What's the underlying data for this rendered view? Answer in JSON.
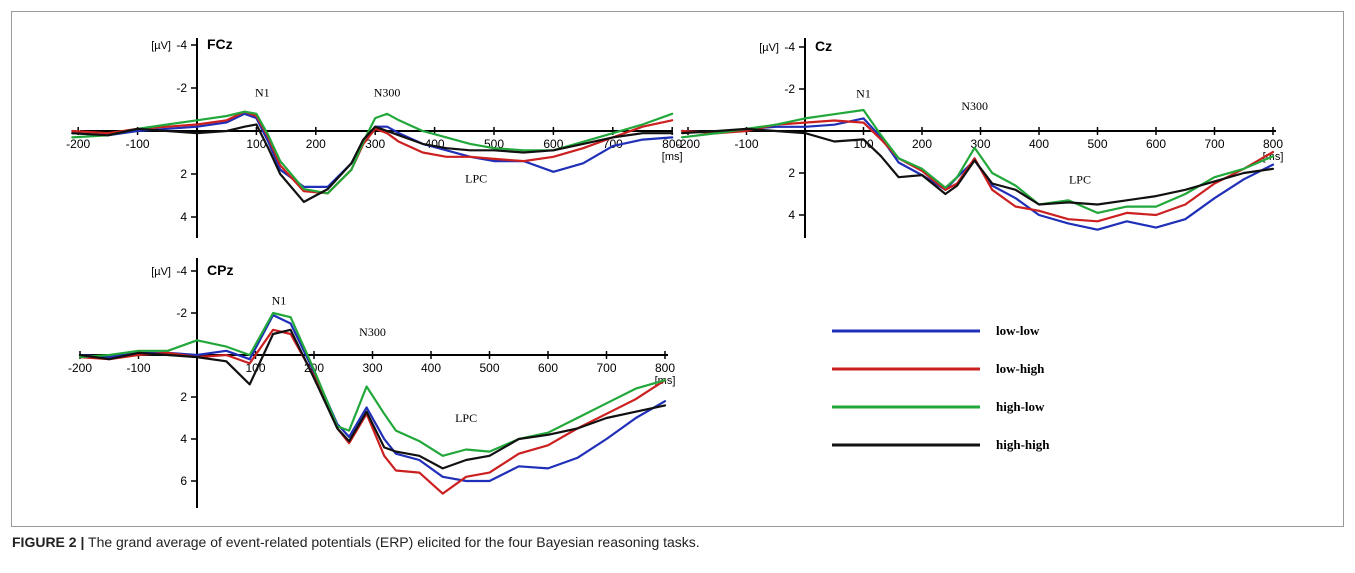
{
  "caption": {
    "label": "FIGURE 2 |",
    "text": " The grand average of event-related potentials (ERP) elicited for the four Bayesian reasoning tasks."
  },
  "chart_data": [
    {
      "type": "line",
      "title": "FCz",
      "y_unit": "[µV]",
      "x_unit": "[ms]",
      "xlim": [
        -210,
        800
      ],
      "ylim": [
        -4.5,
        5
      ],
      "y_inverted": true,
      "xticks": [
        -200,
        -100,
        100,
        200,
        300,
        400,
        500,
        600,
        700,
        800
      ],
      "yticks": [
        -4,
        -2,
        2,
        4
      ],
      "annotations": [
        {
          "text": "N1",
          "x": 110,
          "y": -1.6
        },
        {
          "text": "N300",
          "x": 320,
          "y": -1.6
        },
        {
          "text": "LPC",
          "x": 470,
          "y": 2.4
        }
      ],
      "series": [
        {
          "name": "low-low",
          "color": "#1f2fb8",
          "x": [
            -210,
            -150,
            -100,
            -50,
            0,
            50,
            80,
            100,
            120,
            140,
            180,
            220,
            260,
            280,
            300,
            320,
            340,
            380,
            420,
            460,
            500,
            550,
            600,
            650,
            700,
            750,
            800
          ],
          "y": [
            0.1,
            0.2,
            0.0,
            -0.1,
            -0.2,
            -0.4,
            -0.8,
            -0.6,
            0.5,
            1.8,
            2.6,
            2.6,
            1.5,
            0.5,
            -0.2,
            -0.2,
            0.1,
            0.6,
            0.9,
            1.2,
            1.4,
            1.4,
            1.9,
            1.5,
            0.7,
            0.4,
            0.3
          ]
        },
        {
          "name": "low-high",
          "color": "#cc1f1f",
          "x": [
            -210,
            -150,
            -100,
            -50,
            0,
            50,
            80,
            100,
            120,
            140,
            180,
            220,
            260,
            280,
            300,
            320,
            340,
            380,
            420,
            460,
            500,
            550,
            600,
            650,
            700,
            750,
            800
          ],
          "y": [
            0.0,
            0.1,
            -0.1,
            -0.2,
            -0.3,
            -0.5,
            -0.9,
            -0.7,
            0.3,
            1.6,
            2.8,
            2.9,
            1.8,
            0.6,
            -0.1,
            0.1,
            0.5,
            1.0,
            1.2,
            1.2,
            1.3,
            1.4,
            1.2,
            0.8,
            0.3,
            -0.2,
            -0.5
          ]
        },
        {
          "name": "high-low",
          "color": "#22a83a",
          "x": [
            -210,
            -150,
            -100,
            -50,
            0,
            50,
            80,
            100,
            120,
            140,
            180,
            220,
            260,
            280,
            300,
            320,
            340,
            380,
            420,
            460,
            500,
            550,
            600,
            650,
            700,
            750,
            800
          ],
          "y": [
            0.3,
            0.2,
            -0.1,
            -0.3,
            -0.5,
            -0.7,
            -0.9,
            -0.8,
            0.2,
            1.4,
            2.7,
            2.9,
            1.8,
            0.5,
            -0.6,
            -0.8,
            -0.5,
            0.0,
            0.3,
            0.6,
            0.8,
            0.9,
            0.9,
            0.5,
            0.1,
            -0.3,
            -0.8
          ]
        },
        {
          "name": "high-high",
          "color": "#111111",
          "x": [
            -210,
            -150,
            -100,
            -50,
            0,
            50,
            80,
            100,
            120,
            140,
            180,
            220,
            260,
            280,
            300,
            320,
            340,
            380,
            420,
            460,
            500,
            550,
            600,
            650,
            700,
            750,
            800
          ],
          "y": [
            0.1,
            0.2,
            -0.1,
            0.0,
            0.1,
            0.0,
            -0.2,
            -0.3,
            0.8,
            2.0,
            3.3,
            2.7,
            1.5,
            0.4,
            -0.2,
            0.0,
            0.2,
            0.6,
            0.8,
            0.9,
            0.9,
            1.0,
            0.9,
            0.6,
            0.3,
            0.1,
            0.1
          ]
        }
      ]
    },
    {
      "type": "line",
      "title": "Cz",
      "y_unit": "[µV]",
      "x_unit": "[ms]",
      "xlim": [
        -210,
        800
      ],
      "ylim": [
        -4.5,
        5
      ],
      "y_inverted": true,
      "xticks": [
        -200,
        -100,
        100,
        200,
        300,
        400,
        500,
        600,
        700,
        800
      ],
      "yticks": [
        -4,
        -2,
        2,
        4
      ],
      "annotations": [
        {
          "text": "N1",
          "x": 100,
          "y": -1.6
        },
        {
          "text": "N300",
          "x": 290,
          "y": -1.0
        },
        {
          "text": "LPC",
          "x": 470,
          "y": 2.5
        }
      ],
      "series": [
        {
          "name": "low-low",
          "color": "#1f2fb8",
          "x": [
            -210,
            -150,
            -100,
            -50,
            0,
            50,
            100,
            130,
            160,
            200,
            240,
            260,
            290,
            320,
            360,
            400,
            450,
            500,
            550,
            600,
            650,
            700,
            750,
            800
          ],
          "y": [
            0.0,
            0.1,
            -0.1,
            -0.2,
            -0.2,
            -0.3,
            -0.6,
            0.3,
            1.5,
            2.1,
            2.8,
            2.2,
            1.4,
            2.6,
            3.2,
            4.0,
            4.4,
            4.7,
            4.3,
            4.6,
            4.2,
            3.2,
            2.3,
            1.6
          ]
        },
        {
          "name": "low-high",
          "color": "#cc1f1f",
          "x": [
            -210,
            -150,
            -100,
            -50,
            0,
            50,
            100,
            130,
            160,
            200,
            240,
            260,
            290,
            320,
            360,
            400,
            450,
            500,
            550,
            600,
            650,
            700,
            750,
            800
          ],
          "y": [
            0.0,
            0.1,
            0.0,
            -0.3,
            -0.4,
            -0.5,
            -0.4,
            0.4,
            1.3,
            1.9,
            2.8,
            2.5,
            1.3,
            2.8,
            3.6,
            3.8,
            4.2,
            4.3,
            3.9,
            4.0,
            3.5,
            2.5,
            1.8,
            1.0
          ]
        },
        {
          "name": "high-low",
          "color": "#22a83a",
          "x": [
            -210,
            -150,
            -100,
            -50,
            0,
            50,
            100,
            130,
            160,
            200,
            240,
            260,
            290,
            320,
            360,
            400,
            450,
            500,
            550,
            600,
            650,
            700,
            750,
            800
          ],
          "y": [
            0.3,
            0.1,
            -0.1,
            -0.3,
            -0.6,
            -0.8,
            -1.0,
            0.2,
            1.3,
            1.8,
            2.7,
            2.2,
            0.8,
            2.0,
            2.6,
            3.5,
            3.3,
            3.9,
            3.6,
            3.6,
            3.0,
            2.2,
            1.8,
            1.2
          ]
        },
        {
          "name": "high-high",
          "color": "#111111",
          "x": [
            -210,
            -150,
            -100,
            -50,
            0,
            50,
            100,
            130,
            160,
            200,
            240,
            260,
            290,
            320,
            360,
            400,
            450,
            500,
            550,
            600,
            650,
            700,
            750,
            800
          ],
          "y": [
            0.1,
            0.0,
            -0.1,
            0.0,
            0.1,
            0.5,
            0.4,
            1.2,
            2.2,
            2.1,
            3.0,
            2.6,
            1.4,
            2.5,
            2.8,
            3.5,
            3.4,
            3.5,
            3.3,
            3.1,
            2.8,
            2.4,
            2.0,
            1.8
          ]
        }
      ]
    },
    {
      "type": "line",
      "title": "CPz",
      "y_unit": "[µV]",
      "x_unit": "[ms]",
      "xlim": [
        -200,
        800
      ],
      "ylim": [
        -4.5,
        7
      ],
      "y_inverted": true,
      "xticks": [
        -200,
        -100,
        100,
        200,
        300,
        400,
        500,
        600,
        700,
        800
      ],
      "yticks": [
        -4,
        -2,
        2,
        4,
        6
      ],
      "annotations": [
        {
          "text": "N1",
          "x": 140,
          "y": -2.4
        },
        {
          "text": "N300",
          "x": 300,
          "y": -0.9
        },
        {
          "text": "LPC",
          "x": 460,
          "y": 3.2
        }
      ],
      "series": [
        {
          "name": "low-low",
          "color": "#1f2fb8",
          "x": [
            -200,
            -150,
            -100,
            -50,
            0,
            50,
            90,
            130,
            160,
            200,
            240,
            260,
            290,
            320,
            340,
            380,
            420,
            460,
            500,
            550,
            600,
            650,
            700,
            750,
            800
          ],
          "y": [
            0.0,
            0.1,
            -0.1,
            -0.1,
            0.0,
            -0.2,
            0.2,
            -1.9,
            -1.5,
            0.8,
            3.3,
            3.9,
            2.5,
            4.0,
            4.7,
            5.0,
            5.8,
            6.0,
            6.0,
            5.3,
            5.4,
            4.9,
            4.0,
            3.0,
            2.2
          ]
        },
        {
          "name": "low-high",
          "color": "#cc1f1f",
          "x": [
            -200,
            -150,
            -100,
            -50,
            0,
            50,
            90,
            130,
            160,
            200,
            240,
            260,
            290,
            320,
            340,
            380,
            420,
            460,
            500,
            550,
            600,
            650,
            700,
            750,
            800
          ],
          "y": [
            0.1,
            0.2,
            0.0,
            -0.1,
            0.1,
            0.0,
            0.4,
            -1.2,
            -1.0,
            1.0,
            3.5,
            4.2,
            2.8,
            4.8,
            5.5,
            5.6,
            6.6,
            5.8,
            5.6,
            4.7,
            4.3,
            3.5,
            2.8,
            2.1,
            1.2
          ]
        },
        {
          "name": "high-low",
          "color": "#22a83a",
          "x": [
            -200,
            -150,
            -100,
            -50,
            0,
            50,
            90,
            130,
            160,
            200,
            240,
            260,
            290,
            320,
            340,
            380,
            420,
            460,
            500,
            550,
            600,
            650,
            700,
            750,
            800
          ],
          "y": [
            0.1,
            0.0,
            -0.2,
            -0.2,
            -0.7,
            -0.4,
            0.0,
            -2.0,
            -1.8,
            0.7,
            3.4,
            3.6,
            1.5,
            2.8,
            3.6,
            4.1,
            4.8,
            4.5,
            4.6,
            4.0,
            3.7,
            3.0,
            2.3,
            1.6,
            1.2
          ]
        },
        {
          "name": "high-high",
          "color": "#111111",
          "x": [
            -200,
            -150,
            -100,
            -50,
            0,
            50,
            90,
            130,
            160,
            200,
            240,
            260,
            290,
            320,
            340,
            380,
            420,
            460,
            500,
            550,
            600,
            650,
            700,
            750,
            800
          ],
          "y": [
            0.0,
            0.2,
            -0.1,
            0.0,
            0.1,
            0.3,
            1.4,
            -1.0,
            -1.2,
            1.1,
            3.5,
            4.1,
            2.7,
            4.4,
            4.6,
            4.8,
            5.4,
            5.0,
            4.8,
            4.0,
            3.8,
            3.5,
            3.0,
            2.7,
            2.4
          ]
        }
      ]
    }
  ],
  "legend": [
    {
      "label": "low-low",
      "color": "#1f2fb8"
    },
    {
      "label": "low-high",
      "color": "#cc1f1f"
    },
    {
      "label": "high-low",
      "color": "#22a83a"
    },
    {
      "label": "high-high",
      "color": "#111111"
    }
  ]
}
